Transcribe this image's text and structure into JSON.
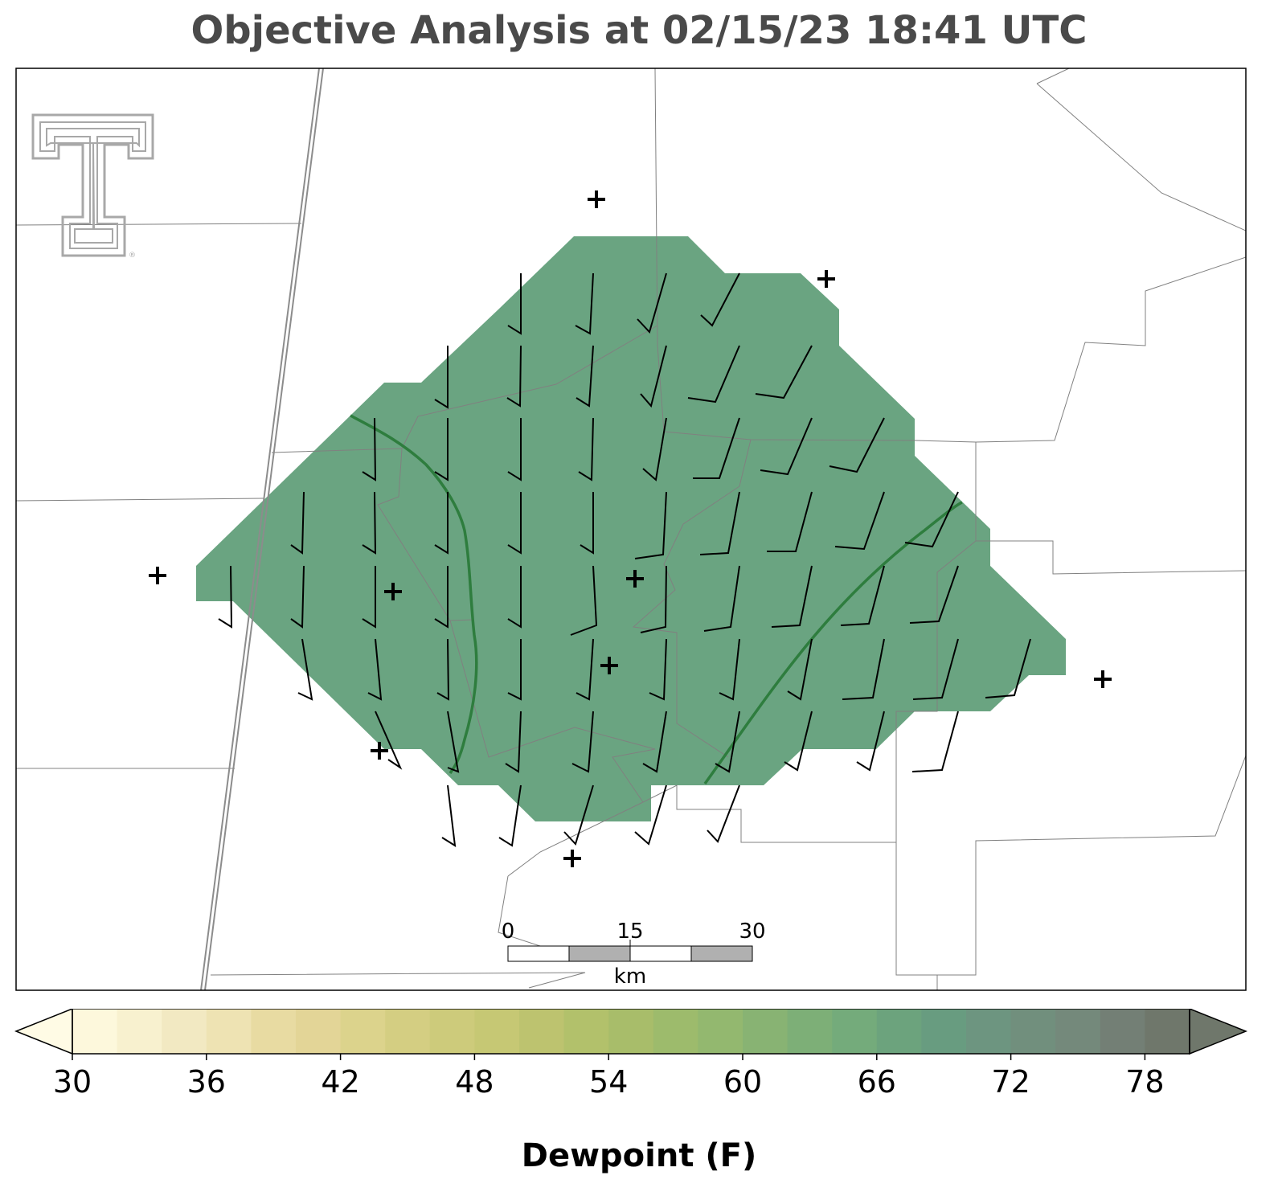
{
  "title": "Objective Analysis at 02/15/23 18:41 UTC",
  "logo": {
    "name": "texas-tech-double-t-logo",
    "color": "#a8a8a8"
  },
  "colors": {
    "fill_main": "#6aa481",
    "fill_east": "#78ad7a",
    "contour": "#2e7d3e",
    "county_line": "#808080",
    "border_line": "#8c8c8c",
    "barb": "#000000"
  },
  "scale_bar": {
    "ticks": [
      "0",
      "15",
      "30"
    ],
    "unit": "km"
  },
  "colorbar": {
    "label": "Dewpoint (F)",
    "min": 30,
    "max": 80,
    "step": 2,
    "ticks": [
      30,
      36,
      42,
      48,
      54,
      60,
      66,
      72,
      78
    ],
    "tick_labels": [
      "30",
      "36",
      "42",
      "48",
      "54",
      "60",
      "66",
      "72",
      "78"
    ],
    "under_color": "#fffbe5",
    "over_color": "#6f776b",
    "colors": [
      "#fdf8dc",
      "#f8f1cf",
      "#f2e9c2",
      "#eee3b3",
      "#e8dba2",
      "#e3d597",
      "#dcd38c",
      "#d4ce82",
      "#cdcb7b",
      "#c6c874",
      "#bdc36f",
      "#b2c16b",
      "#a8bd6a",
      "#9dbb6c",
      "#93b86f",
      "#88b373",
      "#7daf77",
      "#74ab7b",
      "#6ca37d",
      "#689c80",
      "#6d9580",
      "#718f7d",
      "#74897b",
      "#737f75",
      "#6f776b"
    ]
  },
  "stations": [
    {
      "id": "s1"
    },
    {
      "id": "s2"
    },
    {
      "id": "s3"
    },
    {
      "id": "s4"
    },
    {
      "id": "s5"
    },
    {
      "id": "s6"
    },
    {
      "id": "s7"
    },
    {
      "id": "s8"
    },
    {
      "id": "s9"
    }
  ]
}
